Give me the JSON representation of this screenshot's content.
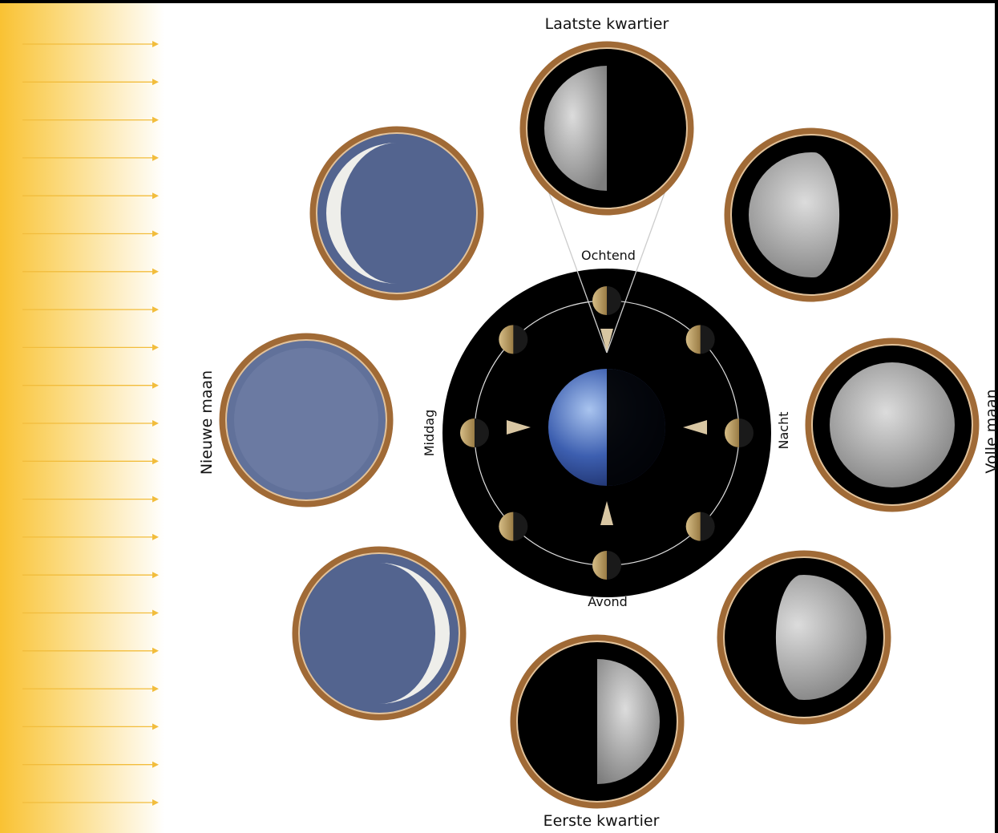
{
  "moon_phases": {
    "top": "Laatste kwartier",
    "bottom": "Eerste kwartier",
    "left": "Nieuwe maan",
    "right": "Volle maan"
  },
  "times_of_day": {
    "top": "Ochtend",
    "bottom": "Avond",
    "left": "Middag",
    "right": "Nacht"
  }
}
